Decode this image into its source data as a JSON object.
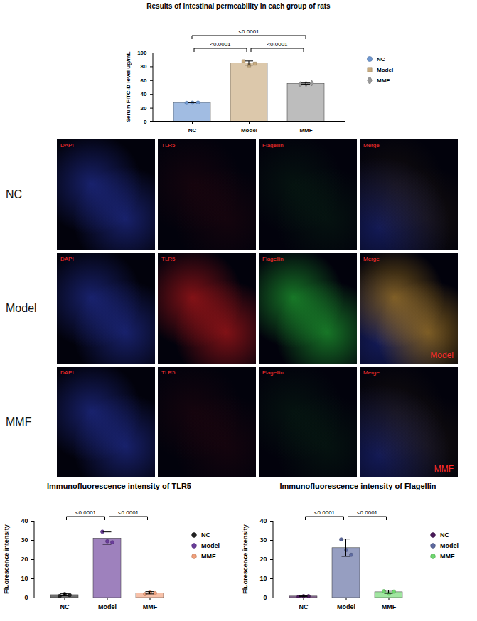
{
  "chart_data": [
    {
      "type": "bar",
      "title": "Results of intestinal permeability in each group of rats",
      "ylabel": "Serum FITC-D level ug/mL",
      "categories": [
        "NC",
        "Model",
        "MMF"
      ],
      "ylim": [
        0,
        100
      ],
      "yticks": [
        0,
        20,
        40,
        60,
        80,
        100
      ],
      "legend": "right",
      "series": [
        {
          "name": "NC",
          "color": "#6f98d2",
          "marker": "circle",
          "values": [
            27.8,
            null,
            null
          ],
          "errors": [
            0.3,
            null,
            null
          ],
          "points": [
            [
              27.5,
              27.9,
              28.0
            ],
            null,
            null
          ]
        },
        {
          "name": "Model",
          "color": "#c9ab7e",
          "marker": "square",
          "values": [
            null,
            84.8,
            null
          ],
          "errors": [
            null,
            3.0,
            null
          ],
          "points": [
            null,
            [
              88.0,
              82.0,
              84.5
            ],
            null
          ]
        },
        {
          "name": "MMF",
          "color": "#999999",
          "marker": "diamond",
          "values": [
            null,
            null,
            55.2
          ],
          "errors": [
            null,
            null,
            1.2
          ],
          "points": [
            null,
            null,
            [
              54.3,
              55.0,
              56.3
            ]
          ]
        }
      ],
      "annotations": [
        {
          "from": "NC",
          "to": "Model",
          "text": "<0.0001"
        },
        {
          "from": "Model",
          "to": "MMF",
          "text": "<0.0001"
        },
        {
          "from": "NC",
          "to": "MMF",
          "text": "<0.0001"
        }
      ]
    },
    {
      "type": "bar",
      "title": "Immunofluorescence intensity of TLR5",
      "ylabel": "Fluorescence intensity",
      "categories": [
        "NC",
        "Model",
        "MMF"
      ],
      "ylim": [
        0,
        40
      ],
      "yticks": [
        0,
        10,
        20,
        30,
        40
      ],
      "legend": "right",
      "series": [
        {
          "name": "NC",
          "color": "#222222",
          "marker": "circle",
          "values": [
            1.5,
            null,
            null
          ],
          "errors": [
            0.6,
            null,
            null
          ],
          "points": [
            [
              1.0,
              2.0,
              1.5
            ],
            null,
            null
          ]
        },
        {
          "name": "Model",
          "color": "#6a3d9a",
          "marker": "circle",
          "values": [
            null,
            31.0,
            null
          ],
          "errors": [
            null,
            3.2,
            null
          ],
          "points": [
            null,
            [
              34.5,
              29.5,
              29.0
            ],
            null
          ]
        },
        {
          "name": "MMF",
          "color": "#f2a07b",
          "marker": "circle",
          "values": [
            null,
            null,
            2.5
          ],
          "errors": [
            null,
            null,
            0.6
          ],
          "points": [
            null,
            null,
            [
              2.0,
              3.0,
              2.5
            ]
          ]
        }
      ],
      "annotations": [
        {
          "from": "NC",
          "to": "Model",
          "text": "<0.0001"
        },
        {
          "from": "Model",
          "to": "MMF",
          "text": "<0.0001"
        }
      ]
    },
    {
      "type": "bar",
      "title": "Immunofluorescence intensity of Flagellin",
      "ylabel": "Fluorescence intensity",
      "categories": [
        "NC",
        "Model",
        "MMF"
      ],
      "ylim": [
        0,
        40
      ],
      "yticks": [
        0,
        10,
        20,
        30,
        40
      ],
      "legend": "right",
      "series": [
        {
          "name": "NC",
          "color": "#4b1a5a",
          "marker": "circle",
          "values": [
            0.8,
            null,
            null
          ],
          "errors": [
            0.2,
            null,
            null
          ],
          "points": [
            [
              0.6,
              0.9,
              0.9
            ],
            null,
            null
          ]
        },
        {
          "name": "Model",
          "color": "#5e6aa0",
          "marker": "circle",
          "values": [
            null,
            26.0,
            null
          ],
          "errors": [
            null,
            4.5,
            null
          ],
          "points": [
            null,
            [
              30.5,
              25.0,
              22.5
            ],
            null
          ]
        },
        {
          "name": "MMF",
          "color": "#6fd86f",
          "marker": "circle",
          "values": [
            null,
            null,
            3.0
          ],
          "errors": [
            null,
            null,
            0.8
          ],
          "points": [
            null,
            null,
            [
              3.5,
              2.2,
              3.3
            ]
          ]
        }
      ],
      "annotations": [
        {
          "from": "NC",
          "to": "Model",
          "text": "<0.0001"
        },
        {
          "from": "Model",
          "to": "MMF",
          "text": "<0.0001"
        }
      ]
    }
  ],
  "image_grid": {
    "columns": [
      "DAPI",
      "TLR5",
      "Flagellin",
      "Merge"
    ],
    "rows": [
      {
        "label": "NC"
      },
      {
        "label": "Model",
        "tag": "Model"
      },
      {
        "label": "MMF",
        "tag": "MMF"
      }
    ]
  }
}
